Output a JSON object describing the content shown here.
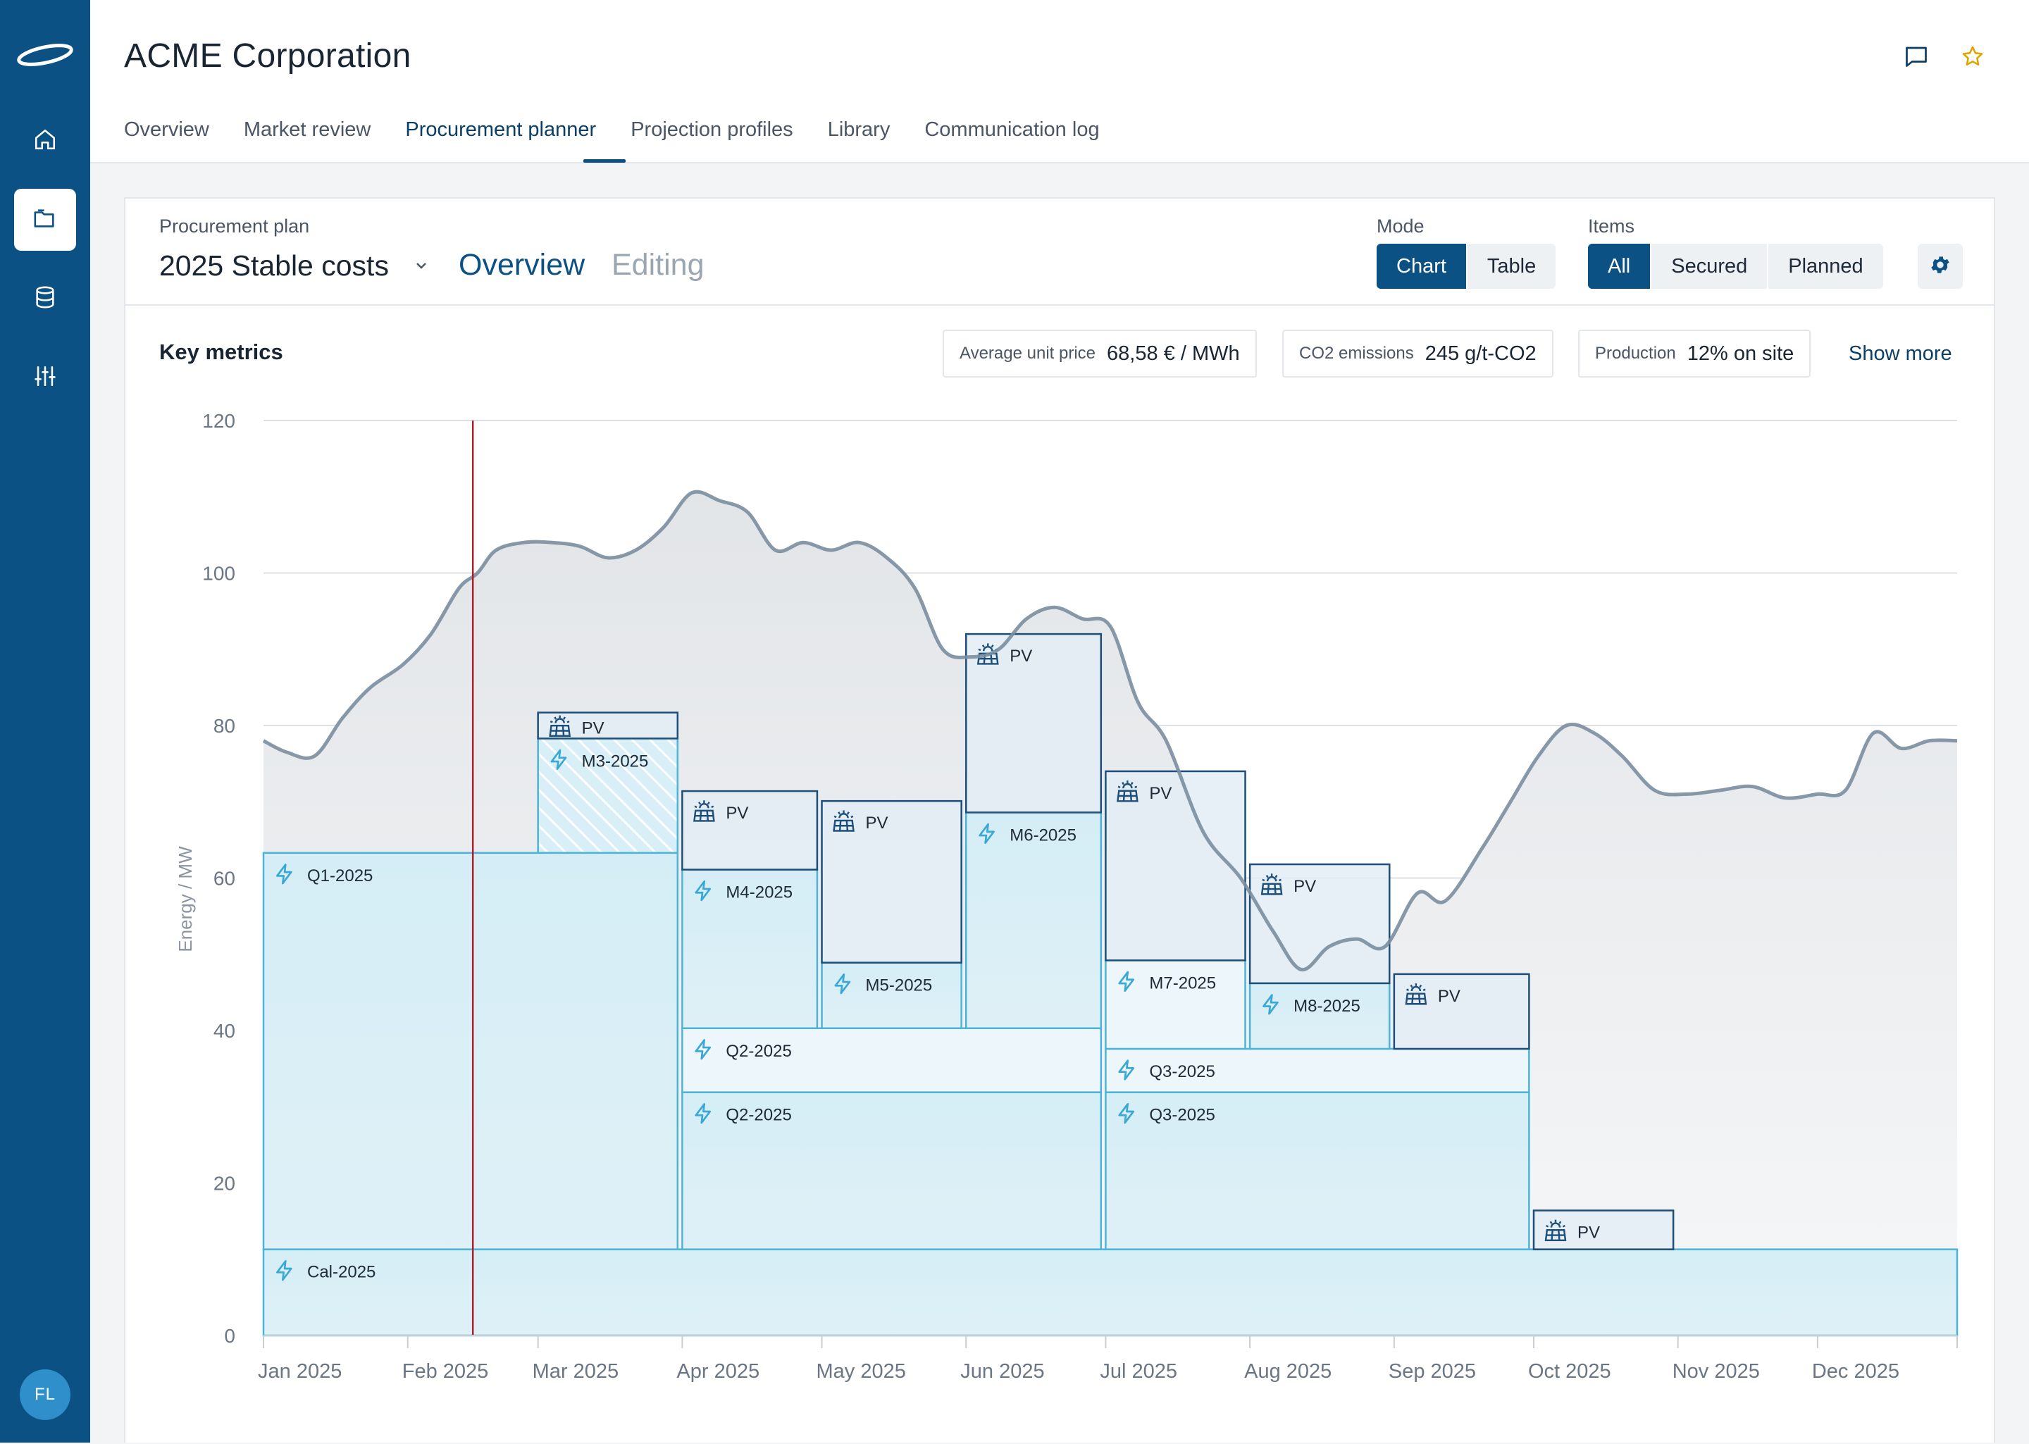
{
  "sidebar": {
    "logo_icon": "acme-swoosh-logo",
    "items": [
      {
        "icon": "home-icon"
      },
      {
        "icon": "folder-icon",
        "active": true
      },
      {
        "icon": "database-icon"
      },
      {
        "icon": "sliders-icon"
      }
    ],
    "user_initials": "FL"
  },
  "header": {
    "title": "ACME Corporation",
    "icons": [
      "comment-icon",
      "star-icon"
    ],
    "tabs": [
      {
        "label": "Overview"
      },
      {
        "label": "Market review"
      },
      {
        "label": "Procurement planner",
        "active": true
      },
      {
        "label": "Projection profiles"
      },
      {
        "label": "Library"
      },
      {
        "label": "Communication log"
      }
    ]
  },
  "plan": {
    "label": "Procurement plan",
    "name": "2025 Stable costs",
    "view_overview": "Overview",
    "view_editing": "Editing",
    "mode_label": "Mode",
    "mode_options": [
      "Chart",
      "Table"
    ],
    "mode_selected": "Chart",
    "items_label": "Items",
    "items_options": [
      "All",
      "Secured",
      "Planned"
    ],
    "items_selected": "All"
  },
  "key_metrics": {
    "title": "Key metrics",
    "metrics": [
      {
        "label": "Average unit price",
        "value": "68,58 € / MWh"
      },
      {
        "label": "CO2 emissions",
        "value": "245 g/t-CO2"
      },
      {
        "label": "Production",
        "value": "12% on site"
      }
    ],
    "show_more": "Show more"
  },
  "colors": {
    "brand": "#0b5183",
    "block_fill": "#d5eef7",
    "block_stroke": "#4db3d9",
    "pv_fill": "#e3edf5",
    "pv_stroke": "#1d4f7a",
    "forecast_line": "#7a8ea0",
    "today_line": "#b0202a"
  },
  "chart_data": {
    "type": "area",
    "ylabel": "Energy / MW",
    "ylim": [
      0,
      120
    ],
    "yticks": [
      0,
      20,
      40,
      60,
      80,
      100,
      120
    ],
    "x_labels": [
      "Jan 2025",
      "Feb 2025",
      "Mar 2025",
      "Apr 2025",
      "May 2025",
      "Jun 2025",
      "Jul 2025",
      "Aug 2025",
      "Sep 2025",
      "Oct 2025",
      "Nov 2025",
      "Dec 2025"
    ],
    "today_marker": "2025-02-15",
    "forecast": [
      [
        "2025-01-01",
        78
      ],
      [
        "2025-01-06",
        76.5
      ],
      [
        "2025-01-12",
        76
      ],
      [
        "2025-01-18",
        81
      ],
      [
        "2025-01-24",
        85
      ],
      [
        "2025-01-31",
        88
      ],
      [
        "2025-02-06",
        92
      ],
      [
        "2025-02-12",
        98
      ],
      [
        "2025-02-16",
        100
      ],
      [
        "2025-02-20",
        103
      ],
      [
        "2025-02-26",
        104
      ],
      [
        "2025-03-04",
        104
      ],
      [
        "2025-03-10",
        103.5
      ],
      [
        "2025-03-16",
        102
      ],
      [
        "2025-03-22",
        103
      ],
      [
        "2025-03-28",
        106
      ],
      [
        "2025-04-03",
        110.5
      ],
      [
        "2025-04-09",
        109.5
      ],
      [
        "2025-04-15",
        108
      ],
      [
        "2025-04-21",
        103
      ],
      [
        "2025-04-27",
        104
      ],
      [
        "2025-05-03",
        103
      ],
      [
        "2025-05-09",
        104
      ],
      [
        "2025-05-15",
        102
      ],
      [
        "2025-05-21",
        98
      ],
      [
        "2025-05-27",
        90
      ],
      [
        "2025-06-02",
        89
      ],
      [
        "2025-06-08",
        90
      ],
      [
        "2025-06-14",
        94
      ],
      [
        "2025-06-20",
        95.5
      ],
      [
        "2025-06-26",
        94
      ],
      [
        "2025-07-02",
        93
      ],
      [
        "2025-07-08",
        83
      ],
      [
        "2025-07-14",
        78
      ],
      [
        "2025-07-22",
        66
      ],
      [
        "2025-07-30",
        60
      ],
      [
        "2025-08-06",
        53
      ],
      [
        "2025-08-12",
        48
      ],
      [
        "2025-08-18",
        51
      ],
      [
        "2025-08-24",
        52
      ],
      [
        "2025-08-30",
        51
      ],
      [
        "2025-09-06",
        58
      ],
      [
        "2025-09-12",
        57
      ],
      [
        "2025-09-20",
        64
      ],
      [
        "2025-09-26",
        70
      ],
      [
        "2025-10-02",
        76
      ],
      [
        "2025-10-08",
        80
      ],
      [
        "2025-10-14",
        79
      ],
      [
        "2025-10-20",
        76
      ],
      [
        "2025-10-27",
        71.5
      ],
      [
        "2025-11-03",
        71
      ],
      [
        "2025-11-10",
        71.5
      ],
      [
        "2025-11-17",
        72
      ],
      [
        "2025-11-24",
        70.5
      ],
      [
        "2025-12-01",
        71
      ],
      [
        "2025-12-07",
        71.5
      ],
      [
        "2025-12-13",
        79
      ],
      [
        "2025-12-19",
        77
      ],
      [
        "2025-12-25",
        78
      ],
      [
        "2025-12-31",
        78
      ]
    ],
    "blocks": [
      {
        "label": "Cal-2025",
        "kind": "contract",
        "start": "2025-01-01",
        "end": "2025-12-31",
        "from": 0,
        "to": 11.3
      },
      {
        "label": "Q1-2025",
        "kind": "contract",
        "start": "2025-01-01",
        "end": "2025-03-31",
        "from": 11.3,
        "to": 63.3
      },
      {
        "label": "M3-2025",
        "kind": "contract",
        "planned": true,
        "start": "2025-03-01",
        "end": "2025-03-31",
        "from": 63.3,
        "to": 78.3
      },
      {
        "label": "PV",
        "kind": "pv",
        "start": "2025-03-01",
        "end": "2025-03-31",
        "from": 78.3,
        "to": 81.7
      },
      {
        "label": "Q2-2025",
        "kind": "contract",
        "start": "2025-04-01",
        "end": "2025-06-30",
        "from": 11.3,
        "to": 31.9
      },
      {
        "label": "Q2-2025",
        "kind": "contract",
        "light": true,
        "start": "2025-04-01",
        "end": "2025-06-30",
        "from": 31.9,
        "to": 40.3
      },
      {
        "label": "M4-2025",
        "kind": "contract",
        "start": "2025-04-01",
        "end": "2025-04-30",
        "from": 40.3,
        "to": 61.1
      },
      {
        "label": "PV",
        "kind": "pv",
        "start": "2025-04-01",
        "end": "2025-04-30",
        "from": 61.1,
        "to": 71.4
      },
      {
        "label": "M5-2025",
        "kind": "contract",
        "start": "2025-05-01",
        "end": "2025-05-31",
        "from": 40.3,
        "to": 48.9
      },
      {
        "label": "PV",
        "kind": "pv",
        "start": "2025-05-01",
        "end": "2025-05-31",
        "from": 48.9,
        "to": 70.1
      },
      {
        "label": "M6-2025",
        "kind": "contract",
        "start": "2025-06-01",
        "end": "2025-06-30",
        "from": 40.3,
        "to": 68.6
      },
      {
        "label": "PV",
        "kind": "pv",
        "start": "2025-06-01",
        "end": "2025-06-30",
        "from": 68.6,
        "to": 92.0
      },
      {
        "label": "Q3-2025",
        "kind": "contract",
        "start": "2025-07-01",
        "end": "2025-09-30",
        "from": 11.3,
        "to": 31.9
      },
      {
        "label": "Q3-2025",
        "kind": "contract",
        "light": true,
        "start": "2025-07-01",
        "end": "2025-09-30",
        "from": 31.9,
        "to": 37.6
      },
      {
        "label": "M7-2025",
        "kind": "contract",
        "light": true,
        "start": "2025-07-01",
        "end": "2025-07-31",
        "from": 37.6,
        "to": 49.2
      },
      {
        "label": "PV",
        "kind": "pv",
        "start": "2025-07-01",
        "end": "2025-07-31",
        "from": 49.2,
        "to": 74.0
      },
      {
        "label": "M8-2025",
        "kind": "contract",
        "start": "2025-08-01",
        "end": "2025-08-31",
        "from": 37.6,
        "to": 46.2
      },
      {
        "label": "PV",
        "kind": "pv",
        "start": "2025-08-01",
        "end": "2025-08-31",
        "from": 46.2,
        "to": 61.8
      },
      {
        "label": "PV",
        "kind": "pv",
        "start": "2025-09-01",
        "end": "2025-09-30",
        "from": 37.6,
        "to": 47.4
      },
      {
        "label": "PV",
        "kind": "pv",
        "start": "2025-10-01",
        "end": "2025-10-31",
        "from": 11.3,
        "to": 16.4
      }
    ]
  }
}
